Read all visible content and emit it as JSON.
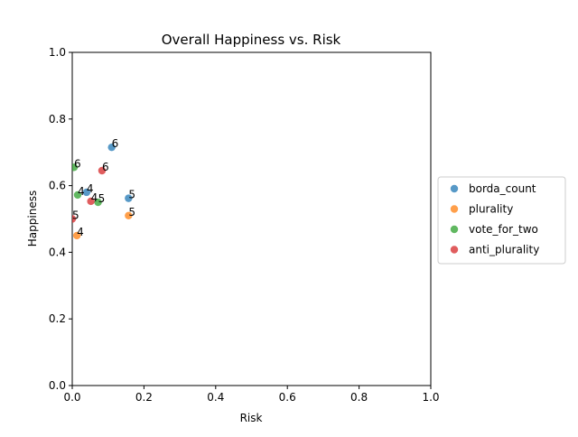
{
  "chart_data": {
    "type": "scatter",
    "title": "Overall Happiness vs. Risk",
    "xlabel": "Risk",
    "ylabel": "Happiness",
    "xlim": [
      0,
      1
    ],
    "ylim": [
      0,
      1
    ],
    "x_ticks": [
      "0.0",
      "0.2",
      "0.4",
      "0.6",
      "0.8",
      "1.0"
    ],
    "y_ticks": [
      "0.0",
      "0.2",
      "0.4",
      "0.6",
      "0.8",
      "1.0"
    ],
    "grid": false,
    "legend_position": "center-right-outside",
    "series": [
      {
        "name": "borda_count",
        "color": "#1f77b4",
        "points": [
          {
            "x": 0.11,
            "y": 0.715,
            "label": "6"
          },
          {
            "x": 0.04,
            "y": 0.58,
            "label": "4"
          },
          {
            "x": 0.157,
            "y": 0.562,
            "label": "5"
          }
        ]
      },
      {
        "name": "plurality",
        "color": "#ff7f0e",
        "points": [
          {
            "x": 0.157,
            "y": 0.51,
            "label": "5"
          },
          {
            "x": 0.013,
            "y": 0.45,
            "label": "4"
          }
        ]
      },
      {
        "name": "vote_for_two",
        "color": "#2ca02c",
        "points": [
          {
            "x": 0.005,
            "y": 0.655,
            "label": "6"
          },
          {
            "x": 0.015,
            "y": 0.572,
            "label": "4"
          },
          {
            "x": 0.072,
            "y": 0.55,
            "label": "5"
          }
        ]
      },
      {
        "name": "anti_plurality",
        "color": "#d62728",
        "points": [
          {
            "x": 0.083,
            "y": 0.645,
            "label": "6"
          },
          {
            "x": 0.052,
            "y": 0.553,
            "label": "4"
          },
          {
            "x": 0.0,
            "y": 0.5,
            "label": "5"
          }
        ]
      }
    ]
  }
}
